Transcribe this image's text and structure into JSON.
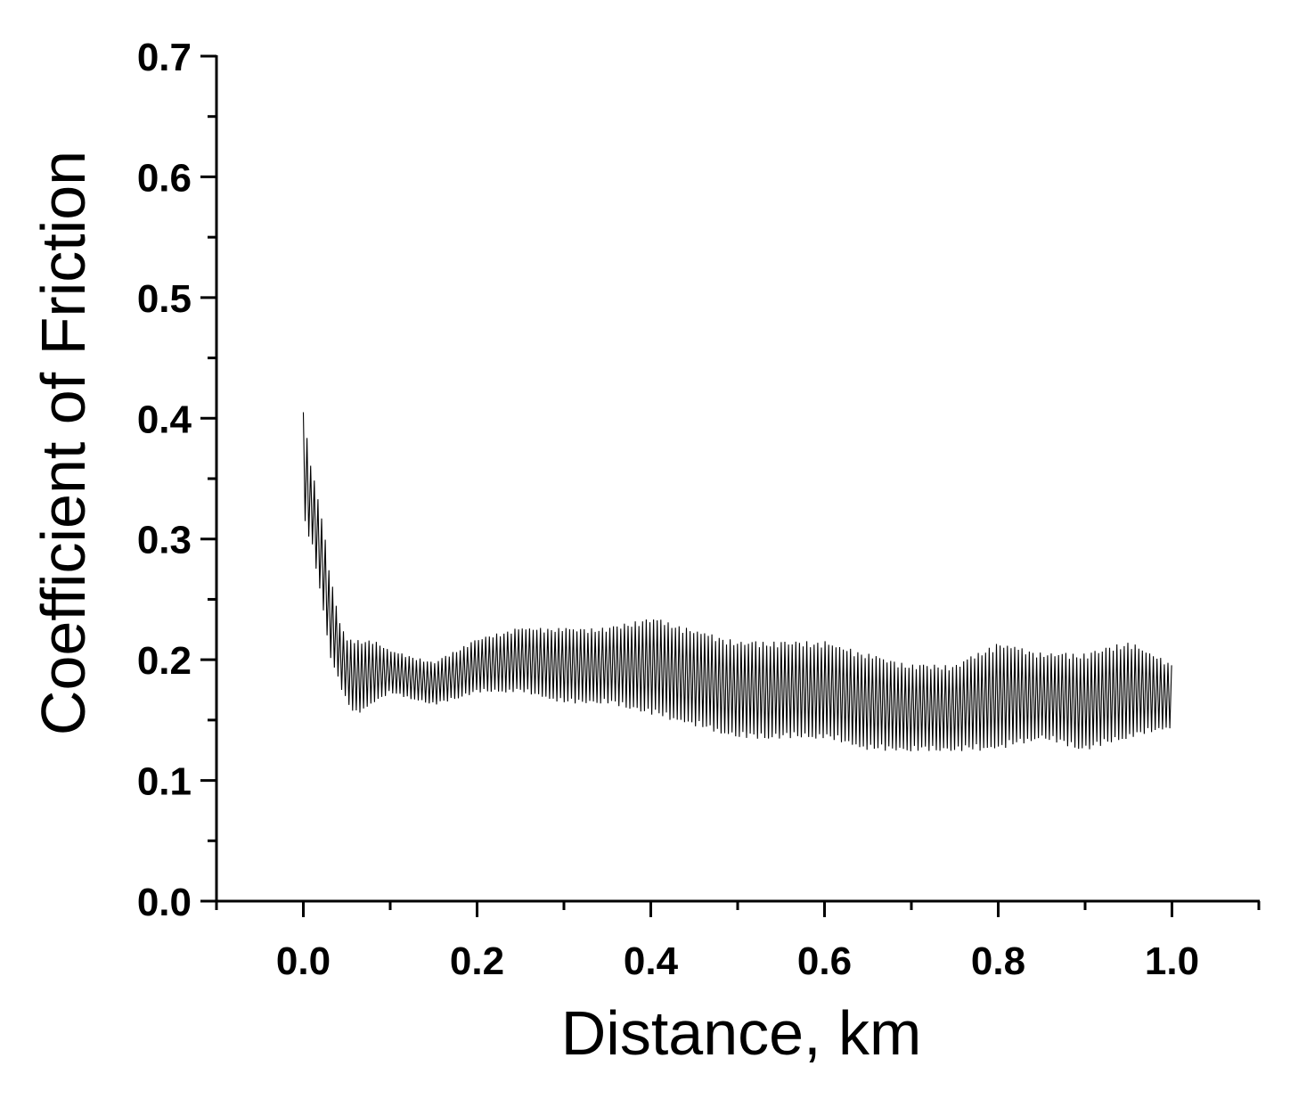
{
  "chart_data": {
    "type": "line",
    "title": "",
    "xlabel": "Distance, km",
    "ylabel": "Coefficient of Friction",
    "xlim": [
      -0.1,
      1.1
    ],
    "ylim": [
      0.0,
      0.7
    ],
    "x_ticks": [
      "0.0",
      "0.2",
      "0.4",
      "0.6",
      "0.8",
      "1.0"
    ],
    "y_ticks": [
      "0.0",
      "0.1",
      "0.2",
      "0.3",
      "0.4",
      "0.5",
      "0.6",
      "0.7"
    ],
    "grid": false,
    "legend": "none",
    "series": [
      {
        "color": "#000000",
        "x": [
          0.0,
          0.01,
          0.02,
          0.03,
          0.04,
          0.05,
          0.06,
          0.08,
          0.1,
          0.15,
          0.2,
          0.25,
          0.3,
          0.35,
          0.4,
          0.45,
          0.5,
          0.55,
          0.6,
          0.65,
          0.7,
          0.75,
          0.8,
          0.85,
          0.9,
          0.95,
          1.0
        ],
        "y_high": [
          0.41,
          0.36,
          0.33,
          0.28,
          0.24,
          0.22,
          0.22,
          0.22,
          0.21,
          0.2,
          0.22,
          0.23,
          0.23,
          0.23,
          0.24,
          0.23,
          0.22,
          0.22,
          0.22,
          0.21,
          0.2,
          0.2,
          0.22,
          0.21,
          0.21,
          0.22,
          0.2
        ],
        "y_low": [
          0.31,
          0.29,
          0.25,
          0.2,
          0.18,
          0.16,
          0.15,
          0.16,
          0.17,
          0.16,
          0.17,
          0.17,
          0.16,
          0.16,
          0.15,
          0.14,
          0.13,
          0.13,
          0.13,
          0.12,
          0.12,
          0.12,
          0.12,
          0.13,
          0.12,
          0.13,
          0.14
        ]
      }
    ]
  }
}
